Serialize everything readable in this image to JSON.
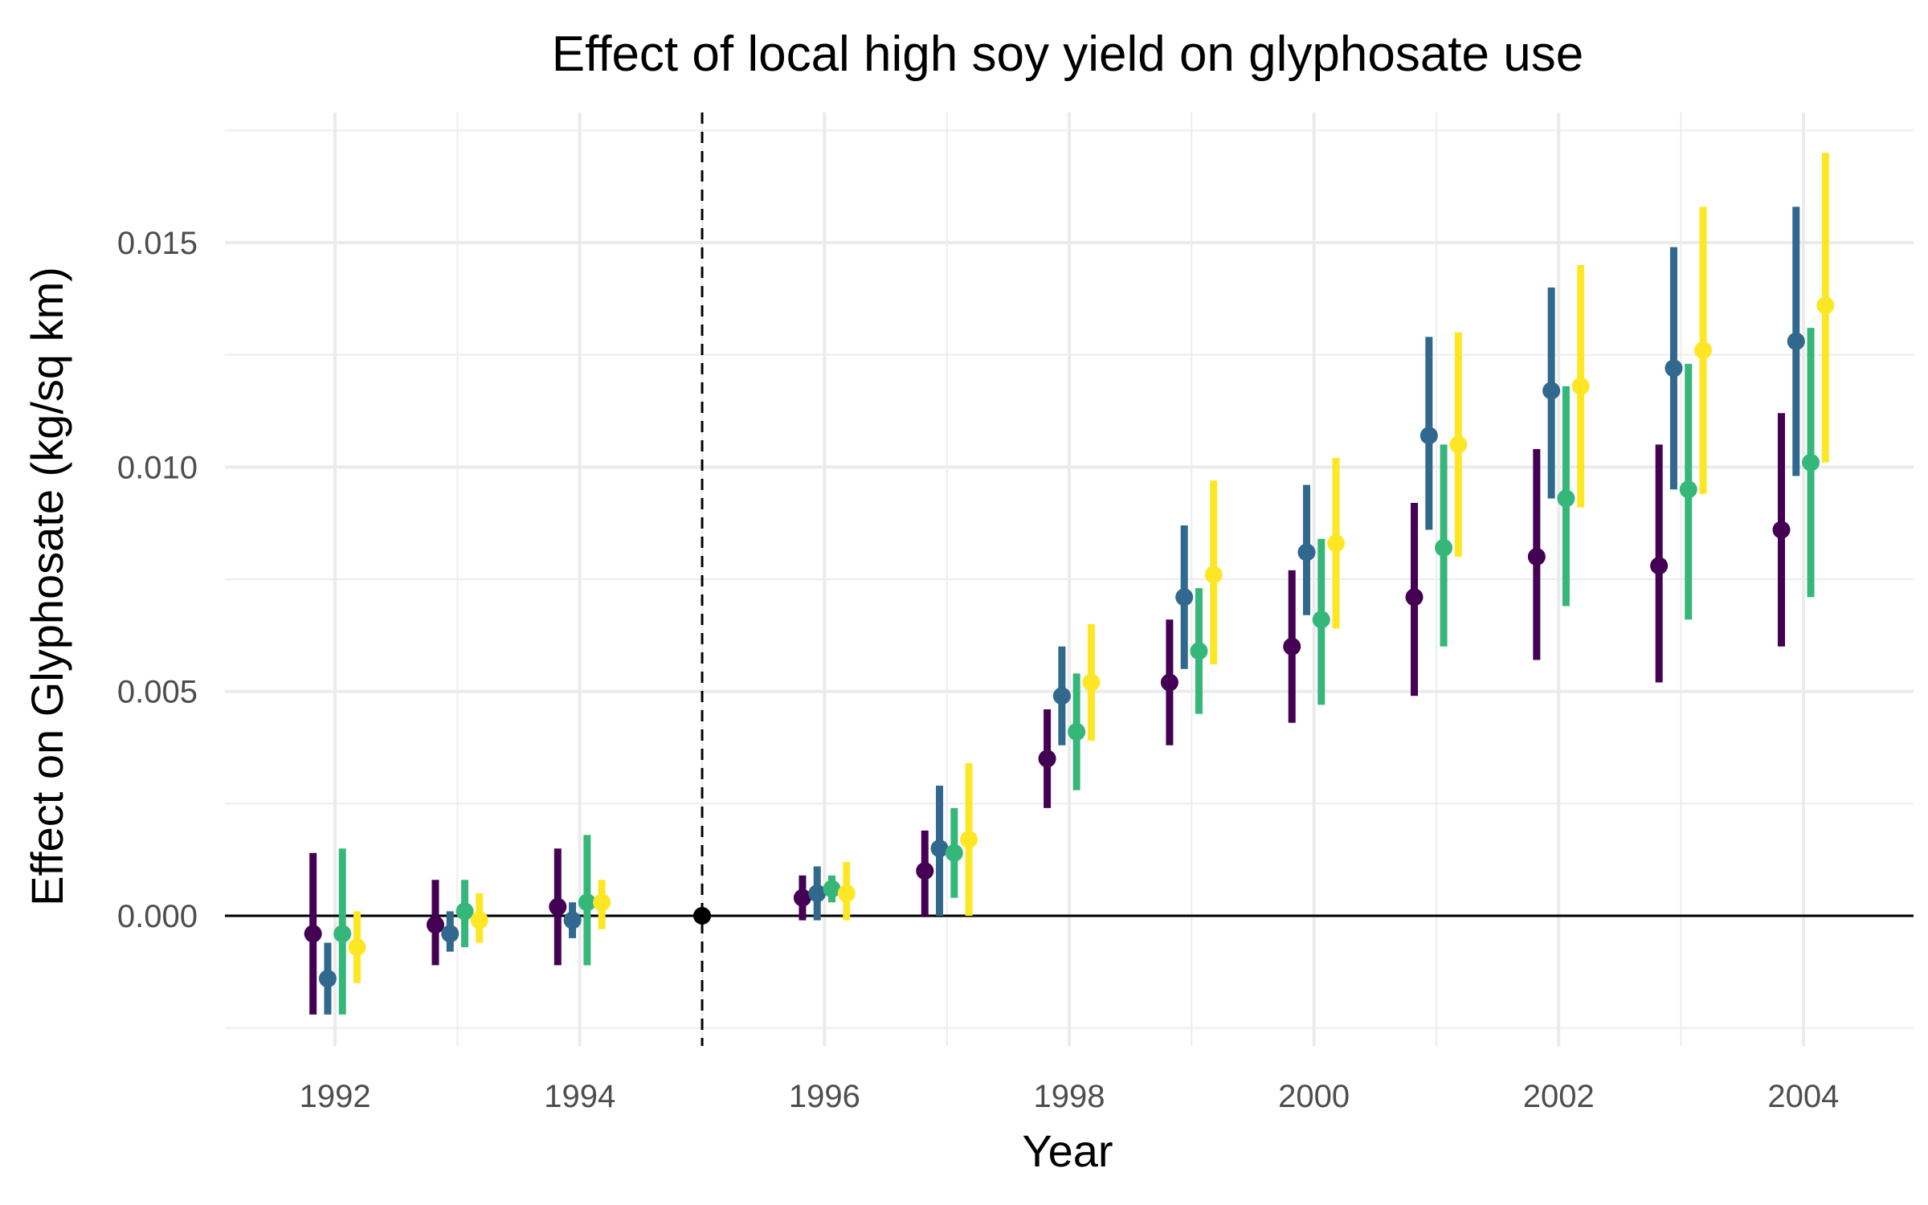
{
  "chart_data": {
    "type": "scatter",
    "subtype": "coefficient-plot-with-error-bars",
    "title": "Effect of local high soy yield on glyphosate use",
    "xlabel": "Year",
    "ylabel": "Effect on Glyphosate (kg/sq km)",
    "xlim": [
      1991.1,
      2004.9
    ],
    "ylim": [
      -0.0029,
      0.0179
    ],
    "x_ticks": [
      1992,
      1994,
      1996,
      1998,
      2000,
      2002,
      2004
    ],
    "x_tick_labels": [
      "1992",
      "1994",
      "1996",
      "1998",
      "2000",
      "2002",
      "2004"
    ],
    "y_ticks": [
      0.0,
      0.005,
      0.01,
      0.015
    ],
    "y_tick_labels": [
      "0.000",
      "0.005",
      "0.010",
      "0.015"
    ],
    "grid": true,
    "legend": "none",
    "reference_line": {
      "orientation": "horizontal",
      "y": 0,
      "style": "solid",
      "color": "#000000"
    },
    "event_line": {
      "orientation": "vertical",
      "x": 1995,
      "style": "dashed",
      "color": "#000000"
    },
    "reference_point": {
      "x": 1995,
      "y": 0,
      "color": "#000000"
    },
    "series_offsets": [
      -0.18,
      -0.06,
      0.06,
      0.18
    ],
    "series": [
      {
        "color": "#440154",
        "points": [
          {
            "x": 1992,
            "y": -0.0004,
            "low": -0.0022,
            "high": 0.0014
          },
          {
            "x": 1993,
            "y": -0.0002,
            "low": -0.0011,
            "high": 0.0008
          },
          {
            "x": 1994,
            "y": 0.0002,
            "low": -0.0011,
            "high": 0.0015
          },
          {
            "x": 1996,
            "y": 0.0004,
            "low": -0.0001,
            "high": 0.0009
          },
          {
            "x": 1997,
            "y": 0.001,
            "low": 0.0,
            "high": 0.0019
          },
          {
            "x": 1998,
            "y": 0.0035,
            "low": 0.0024,
            "high": 0.0046
          },
          {
            "x": 1999,
            "y": 0.0052,
            "low": 0.0038,
            "high": 0.0066
          },
          {
            "x": 2000,
            "y": 0.006,
            "low": 0.0043,
            "high": 0.0077
          },
          {
            "x": 2001,
            "y": 0.0071,
            "low": 0.0049,
            "high": 0.0092
          },
          {
            "x": 2002,
            "y": 0.008,
            "low": 0.0057,
            "high": 0.0104
          },
          {
            "x": 2003,
            "y": 0.0078,
            "low": 0.0052,
            "high": 0.0105
          },
          {
            "x": 2004,
            "y": 0.0086,
            "low": 0.006,
            "high": 0.0112
          }
        ]
      },
      {
        "color": "#31688E",
        "points": [
          {
            "x": 1992,
            "y": -0.0014,
            "low": -0.0022,
            "high": -0.0006
          },
          {
            "x": 1993,
            "y": -0.0004,
            "low": -0.0008,
            "high": 0.0001
          },
          {
            "x": 1994,
            "y": -0.0001,
            "low": -0.0005,
            "high": 0.0003
          },
          {
            "x": 1996,
            "y": 0.0005,
            "low": -0.0001,
            "high": 0.0011
          },
          {
            "x": 1997,
            "y": 0.0015,
            "low": 0.0,
            "high": 0.0029
          },
          {
            "x": 1998,
            "y": 0.0049,
            "low": 0.0038,
            "high": 0.006
          },
          {
            "x": 1999,
            "y": 0.0071,
            "low": 0.0055,
            "high": 0.0087
          },
          {
            "x": 2000,
            "y": 0.0081,
            "low": 0.0067,
            "high": 0.0096
          },
          {
            "x": 2001,
            "y": 0.0107,
            "low": 0.0086,
            "high": 0.0129
          },
          {
            "x": 2002,
            "y": 0.0117,
            "low": 0.0093,
            "high": 0.014
          },
          {
            "x": 2003,
            "y": 0.0122,
            "low": 0.0095,
            "high": 0.0149
          },
          {
            "x": 2004,
            "y": 0.0128,
            "low": 0.0098,
            "high": 0.0158
          }
        ]
      },
      {
        "color": "#35B779",
        "points": [
          {
            "x": 1992,
            "y": -0.0004,
            "low": -0.0022,
            "high": 0.0015
          },
          {
            "x": 1993,
            "y": 0.0001,
            "low": -0.0007,
            "high": 0.0008
          },
          {
            "x": 1994,
            "y": 0.0003,
            "low": -0.0011,
            "high": 0.0018
          },
          {
            "x": 1996,
            "y": 0.0006,
            "low": 0.0003,
            "high": 0.0009
          },
          {
            "x": 1997,
            "y": 0.0014,
            "low": 0.0004,
            "high": 0.0024
          },
          {
            "x": 1998,
            "y": 0.0041,
            "low": 0.0028,
            "high": 0.0054
          },
          {
            "x": 1999,
            "y": 0.0059,
            "low": 0.0045,
            "high": 0.0073
          },
          {
            "x": 2000,
            "y": 0.0066,
            "low": 0.0047,
            "high": 0.0084
          },
          {
            "x": 2001,
            "y": 0.0082,
            "low": 0.006,
            "high": 0.0105
          },
          {
            "x": 2002,
            "y": 0.0093,
            "low": 0.0069,
            "high": 0.0118
          },
          {
            "x": 2003,
            "y": 0.0095,
            "low": 0.0066,
            "high": 0.0123
          },
          {
            "x": 2004,
            "y": 0.0101,
            "low": 0.0071,
            "high": 0.0131
          }
        ]
      },
      {
        "color": "#FDE725",
        "points": [
          {
            "x": 1992,
            "y": -0.0007,
            "low": -0.0015,
            "high": 0.0001
          },
          {
            "x": 1993,
            "y": -0.0001,
            "low": -0.0006,
            "high": 0.0005
          },
          {
            "x": 1994,
            "y": 0.0003,
            "low": -0.0003,
            "high": 0.0008
          },
          {
            "x": 1996,
            "y": 0.0005,
            "low": -0.0001,
            "high": 0.0012
          },
          {
            "x": 1997,
            "y": 0.0017,
            "low": 0.0,
            "high": 0.0034
          },
          {
            "x": 1998,
            "y": 0.0052,
            "low": 0.0039,
            "high": 0.0065
          },
          {
            "x": 1999,
            "y": 0.0076,
            "low": 0.0056,
            "high": 0.0097
          },
          {
            "x": 2000,
            "y": 0.0083,
            "low": 0.0064,
            "high": 0.0102
          },
          {
            "x": 2001,
            "y": 0.0105,
            "low": 0.008,
            "high": 0.013
          },
          {
            "x": 2002,
            "y": 0.0118,
            "low": 0.0091,
            "high": 0.0145
          },
          {
            "x": 2003,
            "y": 0.0126,
            "low": 0.0094,
            "high": 0.0158
          },
          {
            "x": 2004,
            "y": 0.0136,
            "low": 0.0101,
            "high": 0.017
          }
        ]
      }
    ]
  }
}
